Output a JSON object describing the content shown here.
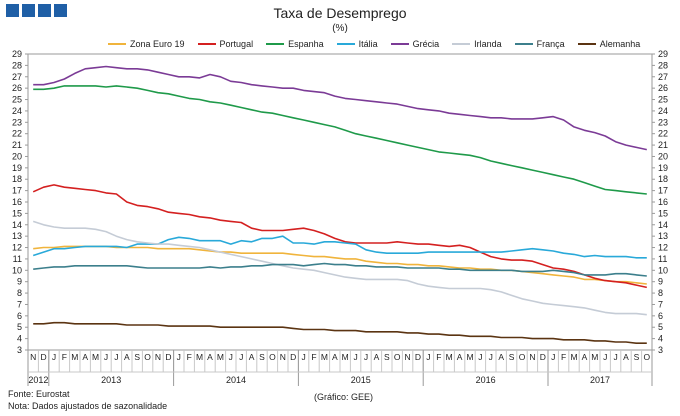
{
  "title": "Taxa de Desemprego",
  "subtitle": "(%)",
  "footer": {
    "source": "Fonte: Eurostat",
    "note": "Nota: Dados ajustados de sazonalidade",
    "credit": "(Gráfico: GEE)"
  },
  "chart_data": {
    "type": "line",
    "x": [
      "2012-11",
      "2012-12",
      "2013-01",
      "2013-02",
      "2013-03",
      "2013-04",
      "2013-05",
      "2013-06",
      "2013-07",
      "2013-08",
      "2013-09",
      "2013-10",
      "2013-11",
      "2013-12",
      "2014-01",
      "2014-02",
      "2014-03",
      "2014-04",
      "2014-05",
      "2014-06",
      "2014-07",
      "2014-08",
      "2014-09",
      "2014-10",
      "2014-11",
      "2014-12",
      "2015-01",
      "2015-02",
      "2015-03",
      "2015-04",
      "2015-05",
      "2015-06",
      "2015-07",
      "2015-08",
      "2015-09",
      "2015-10",
      "2015-11",
      "2015-12",
      "2016-01",
      "2016-02",
      "2016-03",
      "2016-04",
      "2016-05",
      "2016-06",
      "2016-07",
      "2016-08",
      "2016-09",
      "2016-10",
      "2016-11",
      "2016-12",
      "2017-01",
      "2017-02",
      "2017-03",
      "2017-04",
      "2017-05",
      "2017-06",
      "2017-07",
      "2017-08",
      "2017-09",
      "2017-10"
    ],
    "month_labels": [
      "N",
      "D",
      "J",
      "F",
      "M",
      "A",
      "M",
      "J",
      "J",
      "A",
      "S",
      "O",
      "N",
      "D",
      "J",
      "F",
      "M",
      "A",
      "M",
      "J",
      "J",
      "A",
      "S",
      "O",
      "N",
      "D",
      "J",
      "F",
      "M",
      "A",
      "M",
      "J",
      "J",
      "A",
      "S",
      "O",
      "N",
      "D",
      "J",
      "F",
      "M",
      "A",
      "M",
      "J",
      "J",
      "A",
      "S",
      "O",
      "N",
      "D",
      "J",
      "F",
      "M",
      "A",
      "M",
      "J",
      "J",
      "A",
      "S",
      "O"
    ],
    "years": [
      {
        "label": "2012",
        "start": 0,
        "end": 1
      },
      {
        "label": "2013",
        "start": 2,
        "end": 13
      },
      {
        "label": "2014",
        "start": 14,
        "end": 25
      },
      {
        "label": "2015",
        "start": 26,
        "end": 37
      },
      {
        "label": "2016",
        "start": 38,
        "end": 49
      },
      {
        "label": "2017",
        "start": 50,
        "end": 59
      }
    ],
    "ylim": [
      3,
      29
    ],
    "yticks": [
      3,
      4,
      5,
      6,
      7,
      8,
      9,
      10,
      11,
      12,
      13,
      14,
      15,
      16,
      17,
      18,
      19,
      20,
      21,
      22,
      23,
      24,
      25,
      26,
      27,
      28,
      29
    ],
    "grid": false,
    "legend": "top",
    "series": [
      {
        "name": "Zona Euro 19",
        "color": "#f0b43c",
        "values": [
          11.9,
          12.0,
          12.0,
          12.1,
          12.1,
          12.1,
          12.1,
          12.1,
          12.0,
          12.0,
          12.0,
          12.0,
          11.9,
          11.9,
          11.9,
          11.9,
          11.8,
          11.7,
          11.6,
          11.6,
          11.5,
          11.5,
          11.5,
          11.5,
          11.5,
          11.4,
          11.3,
          11.2,
          11.2,
          11.1,
          11.0,
          11.0,
          10.8,
          10.7,
          10.6,
          10.6,
          10.5,
          10.5,
          10.4,
          10.4,
          10.3,
          10.2,
          10.2,
          10.1,
          10.1,
          10.0,
          10.0,
          9.9,
          9.8,
          9.7,
          9.6,
          9.5,
          9.4,
          9.2,
          9.2,
          9.1,
          9.0,
          9.0,
          8.9,
          8.8
        ]
      },
      {
        "name": "Portugal",
        "color": "#d42020",
        "values": [
          16.9,
          17.3,
          17.5,
          17.3,
          17.2,
          17.1,
          17.0,
          16.8,
          16.7,
          16.0,
          15.7,
          15.6,
          15.4,
          15.1,
          15.0,
          14.9,
          14.7,
          14.6,
          14.4,
          14.3,
          14.2,
          13.7,
          13.5,
          13.5,
          13.5,
          13.6,
          13.7,
          13.5,
          13.2,
          12.8,
          12.5,
          12.4,
          12.4,
          12.4,
          12.4,
          12.5,
          12.4,
          12.3,
          12.3,
          12.2,
          12.1,
          12.2,
          12.0,
          11.6,
          11.2,
          11.0,
          10.9,
          10.9,
          10.8,
          10.5,
          10.2,
          10.1,
          9.9,
          9.6,
          9.3,
          9.1,
          9.0,
          8.9,
          8.7,
          8.5
        ]
      },
      {
        "name": "Espanha",
        "color": "#1f9a4a",
        "values": [
          25.9,
          25.9,
          26.0,
          26.2,
          26.2,
          26.2,
          26.2,
          26.1,
          26.2,
          26.1,
          26.0,
          25.8,
          25.6,
          25.5,
          25.3,
          25.1,
          25.0,
          24.8,
          24.7,
          24.5,
          24.3,
          24.1,
          23.9,
          23.8,
          23.6,
          23.4,
          23.2,
          23.0,
          22.8,
          22.6,
          22.3,
          22.0,
          21.8,
          21.6,
          21.4,
          21.2,
          21.0,
          20.8,
          20.6,
          20.4,
          20.3,
          20.2,
          20.1,
          19.9,
          19.6,
          19.4,
          19.2,
          19.0,
          18.8,
          18.6,
          18.4,
          18.2,
          18.0,
          17.7,
          17.4,
          17.1,
          17.0,
          16.9,
          16.8,
          16.7
        ]
      },
      {
        "name": "Itália",
        "color": "#29a9d9",
        "values": [
          11.3,
          11.6,
          11.9,
          11.9,
          12.0,
          12.1,
          12.1,
          12.1,
          12.1,
          12.0,
          12.3,
          12.3,
          12.3,
          12.7,
          12.9,
          12.8,
          12.6,
          12.6,
          12.6,
          12.3,
          12.6,
          12.5,
          12.8,
          12.8,
          13.0,
          12.4,
          12.4,
          12.3,
          12.5,
          12.5,
          12.4,
          12.3,
          11.8,
          11.6,
          11.5,
          11.5,
          11.5,
          11.5,
          11.6,
          11.6,
          11.6,
          11.6,
          11.6,
          11.6,
          11.6,
          11.6,
          11.7,
          11.8,
          11.9,
          11.8,
          11.7,
          11.5,
          11.4,
          11.2,
          11.3,
          11.2,
          11.2,
          11.2,
          11.1,
          11.1
        ]
      },
      {
        "name": "Grécia",
        "color": "#7b3b96",
        "values": [
          26.3,
          26.3,
          26.5,
          26.8,
          27.3,
          27.7,
          27.8,
          27.9,
          27.8,
          27.7,
          27.7,
          27.6,
          27.4,
          27.2,
          27.0,
          27.0,
          26.9,
          27.2,
          27.0,
          26.6,
          26.5,
          26.3,
          26.2,
          26.1,
          26.0,
          26.0,
          25.8,
          25.7,
          25.6,
          25.3,
          25.1,
          25.0,
          24.9,
          24.8,
          24.7,
          24.6,
          24.4,
          24.2,
          24.1,
          24.0,
          23.8,
          23.7,
          23.6,
          23.5,
          23.4,
          23.4,
          23.3,
          23.3,
          23.3,
          23.4,
          23.5,
          23.2,
          22.6,
          22.3,
          22.1,
          21.8,
          21.3,
          21.0,
          20.8,
          20.6
        ]
      },
      {
        "name": "Irlanda",
        "color": "#c5ccd6",
        "values": [
          14.3,
          14.0,
          13.8,
          13.7,
          13.7,
          13.7,
          13.6,
          13.4,
          13.0,
          12.7,
          12.5,
          12.4,
          12.3,
          12.3,
          12.2,
          12.1,
          12.0,
          11.8,
          11.6,
          11.4,
          11.2,
          11.0,
          10.8,
          10.6,
          10.4,
          10.2,
          10.1,
          10.0,
          9.8,
          9.6,
          9.4,
          9.3,
          9.2,
          9.2,
          9.2,
          9.2,
          9.1,
          8.8,
          8.6,
          8.5,
          8.4,
          8.4,
          8.4,
          8.4,
          8.3,
          8.1,
          7.8,
          7.5,
          7.3,
          7.1,
          7.0,
          6.9,
          6.8,
          6.7,
          6.5,
          6.3,
          6.2,
          6.2,
          6.2,
          6.1
        ]
      },
      {
        "name": "França",
        "color": "#3c7f8c",
        "values": [
          10.1,
          10.2,
          10.3,
          10.3,
          10.4,
          10.4,
          10.4,
          10.4,
          10.4,
          10.4,
          10.3,
          10.2,
          10.2,
          10.2,
          10.2,
          10.2,
          10.2,
          10.3,
          10.2,
          10.3,
          10.3,
          10.4,
          10.4,
          10.5,
          10.5,
          10.5,
          10.4,
          10.5,
          10.6,
          10.5,
          10.5,
          10.4,
          10.4,
          10.3,
          10.3,
          10.3,
          10.2,
          10.2,
          10.2,
          10.2,
          10.1,
          10.1,
          10.0,
          10.0,
          10.0,
          10.0,
          10.0,
          9.9,
          9.9,
          9.9,
          10.0,
          9.9,
          9.8,
          9.6,
          9.6,
          9.6,
          9.7,
          9.7,
          9.6,
          9.5
        ]
      },
      {
        "name": "Alemanha",
        "color": "#5b3412",
        "values": [
          5.3,
          5.3,
          5.4,
          5.4,
          5.3,
          5.3,
          5.3,
          5.3,
          5.3,
          5.2,
          5.2,
          5.2,
          5.2,
          5.1,
          5.1,
          5.1,
          5.1,
          5.1,
          5.0,
          5.0,
          5.0,
          5.0,
          5.0,
          5.0,
          5.0,
          4.9,
          4.8,
          4.8,
          4.8,
          4.7,
          4.7,
          4.7,
          4.6,
          4.6,
          4.6,
          4.6,
          4.5,
          4.5,
          4.4,
          4.4,
          4.3,
          4.3,
          4.2,
          4.2,
          4.2,
          4.1,
          4.1,
          4.1,
          4.0,
          4.0,
          4.0,
          3.9,
          3.9,
          3.9,
          3.8,
          3.8,
          3.7,
          3.7,
          3.6,
          3.6
        ]
      }
    ]
  }
}
